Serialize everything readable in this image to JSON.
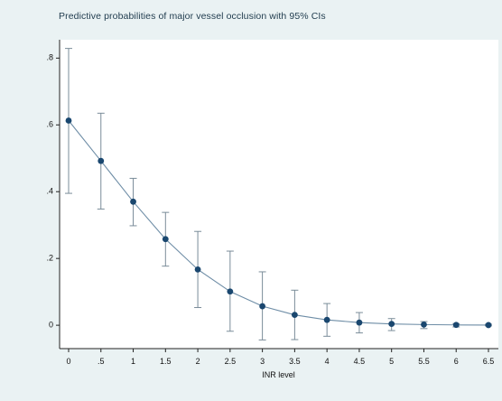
{
  "colors": {
    "background": "#eaf2f3",
    "plot_region": "#ffffff",
    "marker": "#1a476f",
    "line": "#6e8da6",
    "ci": "#7a8c99",
    "title": "#1f3b4d"
  },
  "chart_data": {
    "type": "line",
    "title": "Predictive probabilities of major vessel occlusion with 95% CIs",
    "xlabel": "INR level",
    "ylabel": "",
    "grid": false,
    "legend": "none",
    "xlim": [
      0,
      6.5
    ],
    "ylim": [
      -0.07,
      0.855
    ],
    "x_ticks": [
      {
        "value": 0,
        "label": "0"
      },
      {
        "value": 0.5,
        "label": ".5"
      },
      {
        "value": 1,
        "label": "1"
      },
      {
        "value": 1.5,
        "label": "1.5"
      },
      {
        "value": 2,
        "label": "2"
      },
      {
        "value": 2.5,
        "label": "2.5"
      },
      {
        "value": 3,
        "label": "3"
      },
      {
        "value": 3.5,
        "label": "3.5"
      },
      {
        "value": 4,
        "label": "4"
      },
      {
        "value": 4.5,
        "label": "4.5"
      },
      {
        "value": 5,
        "label": "5"
      },
      {
        "value": 5.5,
        "label": "5.5"
      },
      {
        "value": 6,
        "label": "6"
      },
      {
        "value": 6.5,
        "label": "6.5"
      }
    ],
    "y_ticks": [
      {
        "value": 0,
        "label": "0"
      },
      {
        "value": 0.2,
        "label": ".2"
      },
      {
        "value": 0.4,
        "label": ".4"
      },
      {
        "value": 0.6,
        "label": ".6"
      },
      {
        "value": 0.8,
        "label": ".8"
      }
    ],
    "series": [
      {
        "x": [
          0,
          0.5,
          1,
          1.5,
          2,
          2.5,
          3,
          3.5,
          4,
          4.5,
          5,
          5.5,
          6,
          6.5
        ],
        "y": [
          0.613,
          0.492,
          0.37,
          0.258,
          0.167,
          0.101,
          0.057,
          0.031,
          0.016,
          0.008,
          0.004,
          0.002,
          0.001,
          0.0005
        ],
        "ci_low": [
          0.395,
          0.348,
          0.298,
          0.177,
          0.053,
          -0.018,
          -0.044,
          -0.043,
          -0.033,
          -0.023,
          -0.016,
          -0.01,
          -0.005,
          -0.002
        ],
        "ci_high": [
          0.829,
          0.635,
          0.44,
          0.338,
          0.281,
          0.222,
          0.16,
          0.105,
          0.065,
          0.038,
          0.02,
          0.011,
          0.005,
          0.003
        ]
      }
    ]
  }
}
